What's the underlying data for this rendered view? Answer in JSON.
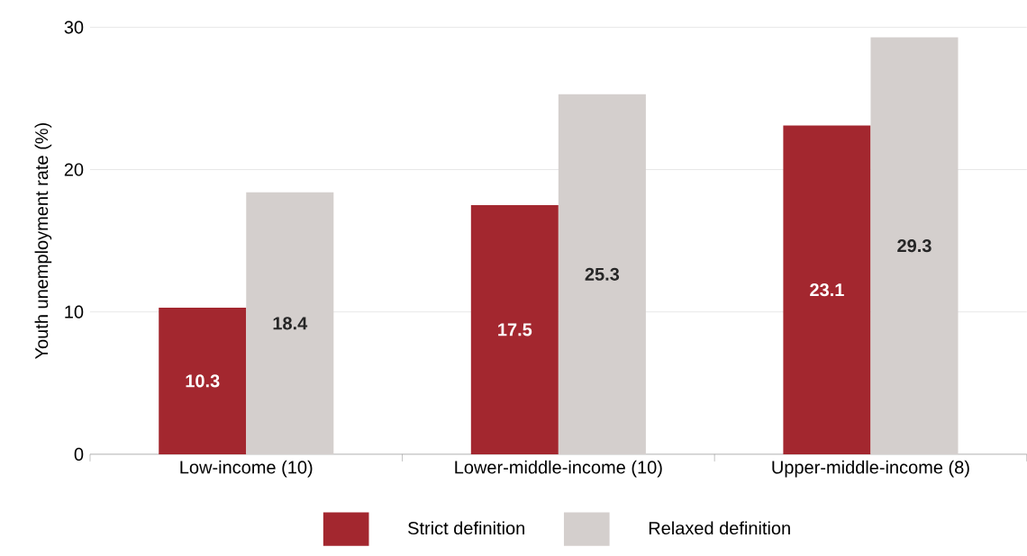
{
  "chart_data": {
    "type": "bar",
    "ylabel": "Youth unemployment rate (%)",
    "categories": [
      "Low-income (10)",
      "Lower-middle-income (10)",
      "Upper-middle-income (8)"
    ],
    "series": [
      {
        "name": "Strict definition",
        "color": "#a3272f",
        "values": [
          10.3,
          17.5,
          23.1
        ]
      },
      {
        "name": "Relaxed definition",
        "color": "#d4cfcd",
        "values": [
          18.4,
          25.3,
          29.3
        ]
      }
    ],
    "ylim": [
      0,
      30
    ],
    "yticks": [
      0,
      10,
      20,
      30
    ],
    "grid": "y",
    "legend": "bottom",
    "data_labels": true
  }
}
